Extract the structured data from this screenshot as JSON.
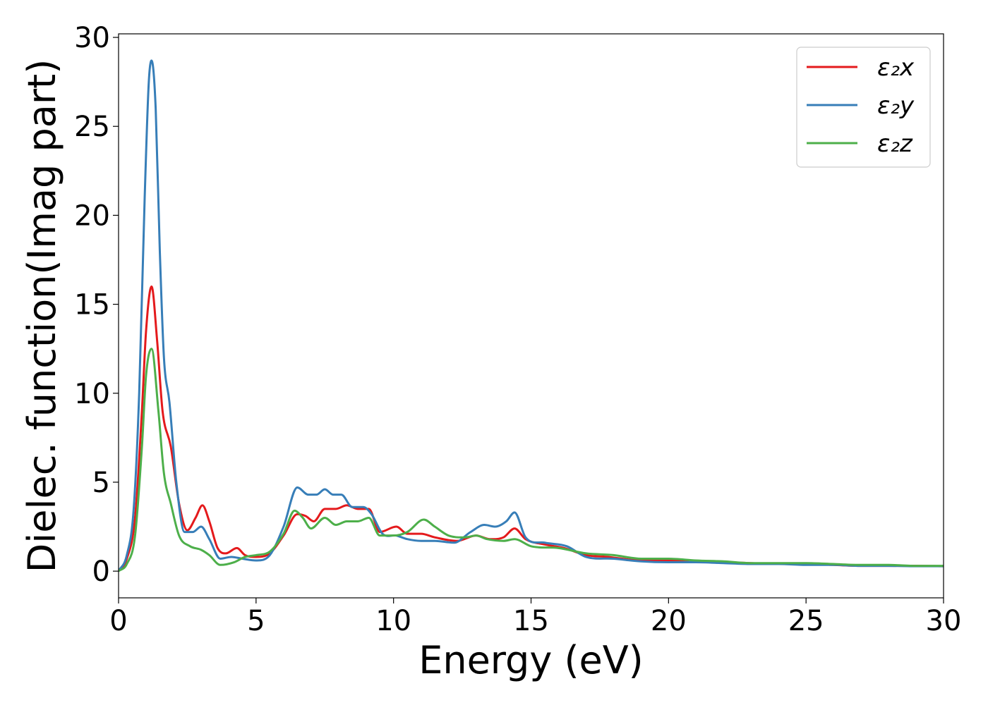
{
  "chart_data": {
    "type": "line",
    "title": "",
    "xlabel": "Energy (eV)",
    "ylabel": "Dielec. function(Imag part)",
    "xlim": [
      0,
      30
    ],
    "ylim": [
      -1.5,
      30.2
    ],
    "xticks": [
      "0",
      "5",
      "10",
      "15",
      "20",
      "25",
      "30"
    ],
    "yticks": [
      "0",
      "5",
      "10",
      "15",
      "20",
      "25",
      "30"
    ],
    "grid": false,
    "legend_position": "top-right",
    "series": [
      {
        "name": "ε₂x",
        "color": "#e41a1c",
        "points": [
          [
            0,
            0
          ],
          [
            0.3,
            0.7
          ],
          [
            0.6,
            3.0
          ],
          [
            0.85,
            9.0
          ],
          [
            1.0,
            13.5
          ],
          [
            1.2,
            16.0
          ],
          [
            1.4,
            13.0
          ],
          [
            1.6,
            9.0
          ],
          [
            1.9,
            7.0
          ],
          [
            2.2,
            3.8
          ],
          [
            2.5,
            2.3
          ],
          [
            2.8,
            3.0
          ],
          [
            3.05,
            3.7
          ],
          [
            3.3,
            2.8
          ],
          [
            3.6,
            1.3
          ],
          [
            3.9,
            1.0
          ],
          [
            4.3,
            1.3
          ],
          [
            4.6,
            0.9
          ],
          [
            5.0,
            0.8
          ],
          [
            5.5,
            1.0
          ],
          [
            6.0,
            2.0
          ],
          [
            6.5,
            3.2
          ],
          [
            6.8,
            3.1
          ],
          [
            7.1,
            2.8
          ],
          [
            7.5,
            3.5
          ],
          [
            7.9,
            3.5
          ],
          [
            8.3,
            3.7
          ],
          [
            8.7,
            3.5
          ],
          [
            9.1,
            3.5
          ],
          [
            9.5,
            2.2
          ],
          [
            10.1,
            2.5
          ],
          [
            10.5,
            2.1
          ],
          [
            11.0,
            2.1
          ],
          [
            11.5,
            1.9
          ],
          [
            12.3,
            1.7
          ],
          [
            13.0,
            2.0
          ],
          [
            13.5,
            1.8
          ],
          [
            14.0,
            1.9
          ],
          [
            14.4,
            2.4
          ],
          [
            14.8,
            1.8
          ],
          [
            15.5,
            1.5
          ],
          [
            16.2,
            1.3
          ],
          [
            17.0,
            0.9
          ],
          [
            17.8,
            0.8
          ],
          [
            19.0,
            0.6
          ],
          [
            20.0,
            0.6
          ],
          [
            21.0,
            0.5
          ],
          [
            22.0,
            0.5
          ],
          [
            23.0,
            0.45
          ],
          [
            24.0,
            0.4
          ],
          [
            25.0,
            0.4
          ],
          [
            26.0,
            0.35
          ],
          [
            27.0,
            0.3
          ],
          [
            28.0,
            0.3
          ],
          [
            29.0,
            0.3
          ],
          [
            30.0,
            0.28
          ]
        ]
      },
      {
        "name": "ε₂y",
        "color": "#377eb8",
        "points": [
          [
            0,
            0
          ],
          [
            0.3,
            0.9
          ],
          [
            0.55,
            3.5
          ],
          [
            0.75,
            10.0
          ],
          [
            0.95,
            21.0
          ],
          [
            1.1,
            27.5
          ],
          [
            1.2,
            28.7
          ],
          [
            1.35,
            26.0
          ],
          [
            1.5,
            18.0
          ],
          [
            1.65,
            12.0
          ],
          [
            1.85,
            9.5
          ],
          [
            2.1,
            5.0
          ],
          [
            2.4,
            2.2
          ],
          [
            2.7,
            2.2
          ],
          [
            3.0,
            2.5
          ],
          [
            3.3,
            1.8
          ],
          [
            3.7,
            0.7
          ],
          [
            4.1,
            0.8
          ],
          [
            4.5,
            0.7
          ],
          [
            5.0,
            0.6
          ],
          [
            5.5,
            0.9
          ],
          [
            6.0,
            2.5
          ],
          [
            6.5,
            4.7
          ],
          [
            6.9,
            4.3
          ],
          [
            7.2,
            4.3
          ],
          [
            7.5,
            4.6
          ],
          [
            7.8,
            4.3
          ],
          [
            8.1,
            4.3
          ],
          [
            8.5,
            3.6
          ],
          [
            8.9,
            3.6
          ],
          [
            9.2,
            3.2
          ],
          [
            9.6,
            2.1
          ],
          [
            10.1,
            2.0
          ],
          [
            10.5,
            1.8
          ],
          [
            11.0,
            1.7
          ],
          [
            11.5,
            1.7
          ],
          [
            12.2,
            1.6
          ],
          [
            12.8,
            2.2
          ],
          [
            13.3,
            2.6
          ],
          [
            13.7,
            2.5
          ],
          [
            14.1,
            2.8
          ],
          [
            14.4,
            3.3
          ],
          [
            14.8,
            1.9
          ],
          [
            15.5,
            1.6
          ],
          [
            16.3,
            1.4
          ],
          [
            17.0,
            0.8
          ],
          [
            18.0,
            0.7
          ],
          [
            19.0,
            0.55
          ],
          [
            20.0,
            0.5
          ],
          [
            21.0,
            0.5
          ],
          [
            22.0,
            0.45
          ],
          [
            23.0,
            0.4
          ],
          [
            24.0,
            0.4
          ],
          [
            25.0,
            0.35
          ],
          [
            26.0,
            0.35
          ],
          [
            27.0,
            0.3
          ],
          [
            28.0,
            0.3
          ],
          [
            29.0,
            0.28
          ],
          [
            30.0,
            0.28
          ]
        ]
      },
      {
        "name": "ε₂z",
        "color": "#4daf4a",
        "points": [
          [
            0,
            0
          ],
          [
            0.3,
            0.4
          ],
          [
            0.6,
            2.0
          ],
          [
            0.85,
            7.0
          ],
          [
            1.0,
            11.0
          ],
          [
            1.2,
            12.5
          ],
          [
            1.45,
            9.0
          ],
          [
            1.65,
            5.5
          ],
          [
            1.9,
            3.8
          ],
          [
            2.2,
            2.0
          ],
          [
            2.6,
            1.4
          ],
          [
            3.0,
            1.2
          ],
          [
            3.3,
            0.9
          ],
          [
            3.7,
            0.35
          ],
          [
            4.2,
            0.5
          ],
          [
            4.6,
            0.8
          ],
          [
            5.0,
            0.9
          ],
          [
            5.5,
            1.1
          ],
          [
            6.0,
            2.1
          ],
          [
            6.4,
            3.4
          ],
          [
            6.7,
            3.0
          ],
          [
            7.0,
            2.4
          ],
          [
            7.5,
            3.0
          ],
          [
            7.9,
            2.6
          ],
          [
            8.3,
            2.8
          ],
          [
            8.7,
            2.8
          ],
          [
            9.1,
            3.0
          ],
          [
            9.5,
            2.0
          ],
          [
            10.0,
            2.0
          ],
          [
            10.5,
            2.2
          ],
          [
            11.1,
            2.9
          ],
          [
            11.5,
            2.5
          ],
          [
            12.0,
            2.0
          ],
          [
            12.6,
            1.9
          ],
          [
            13.0,
            2.0
          ],
          [
            13.4,
            1.8
          ],
          [
            14.0,
            1.7
          ],
          [
            14.4,
            1.8
          ],
          [
            15.0,
            1.4
          ],
          [
            16.0,
            1.3
          ],
          [
            17.0,
            1.0
          ],
          [
            18.0,
            0.9
          ],
          [
            19.0,
            0.7
          ],
          [
            20.0,
            0.7
          ],
          [
            21.0,
            0.6
          ],
          [
            22.0,
            0.55
          ],
          [
            23.0,
            0.45
          ],
          [
            24.0,
            0.45
          ],
          [
            25.0,
            0.45
          ],
          [
            26.0,
            0.4
          ],
          [
            27.0,
            0.35
          ],
          [
            28.0,
            0.35
          ],
          [
            29.0,
            0.3
          ],
          [
            30.0,
            0.3
          ]
        ]
      }
    ]
  }
}
